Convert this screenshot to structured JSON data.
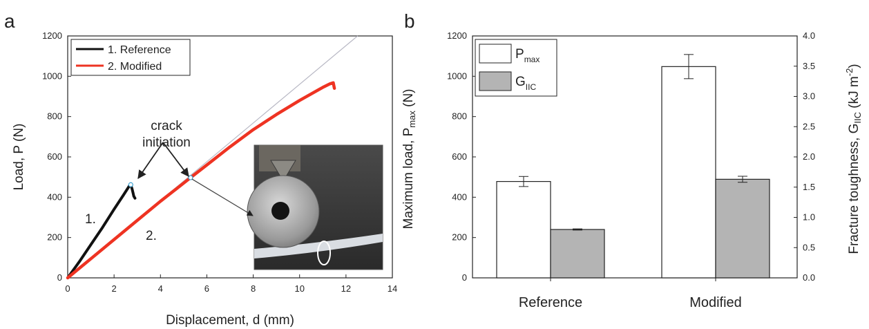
{
  "chart_data": [
    {
      "type": "line",
      "panel_label": "a",
      "xlabel": "Displacement, d (mm)",
      "ylabel": "Load, P (N)",
      "xlim": [
        0,
        14
      ],
      "ylim": [
        0,
        1200
      ],
      "x_ticks": [
        0,
        2,
        4,
        6,
        8,
        10,
        12,
        14
      ],
      "y_ticks": [
        0,
        200,
        400,
        600,
        800,
        1000,
        1200
      ],
      "legend_position": "top-left",
      "series": [
        {
          "name": "1. Reference",
          "color": "#111111",
          "x": [
            0,
            0.5,
            1.0,
            1.5,
            2.0,
            2.4,
            2.65,
            2.72,
            2.78,
            2.82,
            2.85,
            2.9
          ],
          "y": [
            0,
            80,
            165,
            250,
            340,
            410,
            455,
            462,
            440,
            420,
            405,
            395
          ]
        },
        {
          "name": "2. Modified",
          "color": "#ee3322",
          "x": [
            0,
            1,
            2,
            3,
            4,
            5,
            5.3,
            6,
            7,
            8,
            9,
            10,
            11,
            11.3,
            11.45,
            11.5
          ],
          "y": [
            0,
            95,
            190,
            285,
            380,
            470,
            497,
            560,
            650,
            735,
            810,
            880,
            945,
            962,
            968,
            940
          ]
        }
      ],
      "reference_line": {
        "color": "#b8b8c4",
        "x": [
          0,
          12.5
        ],
        "y": [
          0,
          1200
        ]
      },
      "annotations": [
        {
          "lines": [
            "crack",
            "initiation"
          ]
        },
        {
          "text": "1."
        },
        {
          "text": "2."
        }
      ],
      "crack_points": [
        {
          "series": "1. Reference",
          "x": 2.72,
          "y": 462
        },
        {
          "series": "2. Modified",
          "x": 5.3,
          "y": 497
        }
      ]
    },
    {
      "type": "bar",
      "panel_label": "b",
      "categories": [
        "Reference",
        "Modified"
      ],
      "ylabel": "Maximum load, P",
      "ylabel_sub": "max",
      "ylabel_unit": " (N)",
      "ylim": [
        0,
        1200
      ],
      "y_ticks": [
        0,
        200,
        400,
        600,
        800,
        1000,
        1200
      ],
      "y2label": "Fracture toughness, G",
      "y2label_sub": "IIC",
      "y2label_unit": " (kJ m",
      "y2label_sup": "-2",
      "y2label_close": ")",
      "y2lim": [
        0,
        4.0
      ],
      "y2_ticks": [
        "0.0",
        "0.5",
        "1.0",
        "1.5",
        "2.0",
        "2.5",
        "3.0",
        "3.5",
        "4.0"
      ],
      "legend_position": "top-left",
      "series": [
        {
          "name": "P",
          "name_sub": "max",
          "axis": "left",
          "color": "#ffffff",
          "values": [
            478,
            1048
          ],
          "errors": [
            25,
            60
          ]
        },
        {
          "name": "G",
          "name_sub": "IIC",
          "axis": "right",
          "color": "#b4b4b4",
          "values": [
            0.8,
            1.63
          ],
          "errors": [
            0.01,
            0.05
          ]
        }
      ]
    }
  ]
}
